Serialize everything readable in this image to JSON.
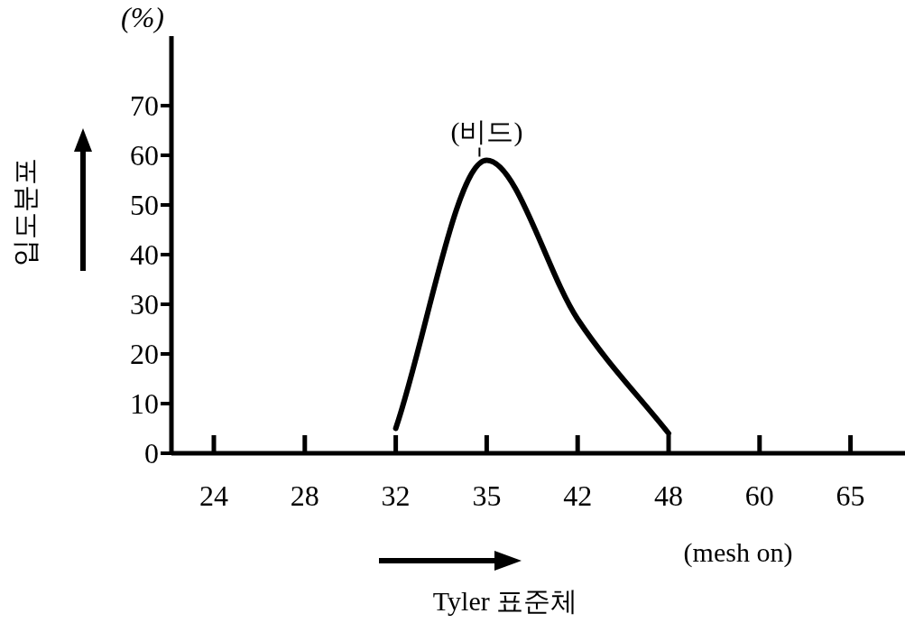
{
  "chart_data": {
    "type": "line",
    "ylabel": "입도분포",
    "xlabel": "Tyler 표준체",
    "categories": [
      "24",
      "28",
      "32",
      "35",
      "42",
      "48",
      "60",
      "65"
    ],
    "series": [
      {
        "color": "#000000",
        "values": [
          null,
          null,
          5,
          59,
          27,
          4,
          null,
          null
        ]
      }
    ],
    "ylim": [
      0,
      84
    ],
    "yticks": [
      0,
      10,
      20,
      30,
      40,
      50,
      60,
      70
    ],
    "annotations": [
      "(%)",
      {
        "text": "(비드)",
        "x": "35",
        "y": 59
      },
      "(mesh on)"
    ],
    "line_style": "solid"
  }
}
